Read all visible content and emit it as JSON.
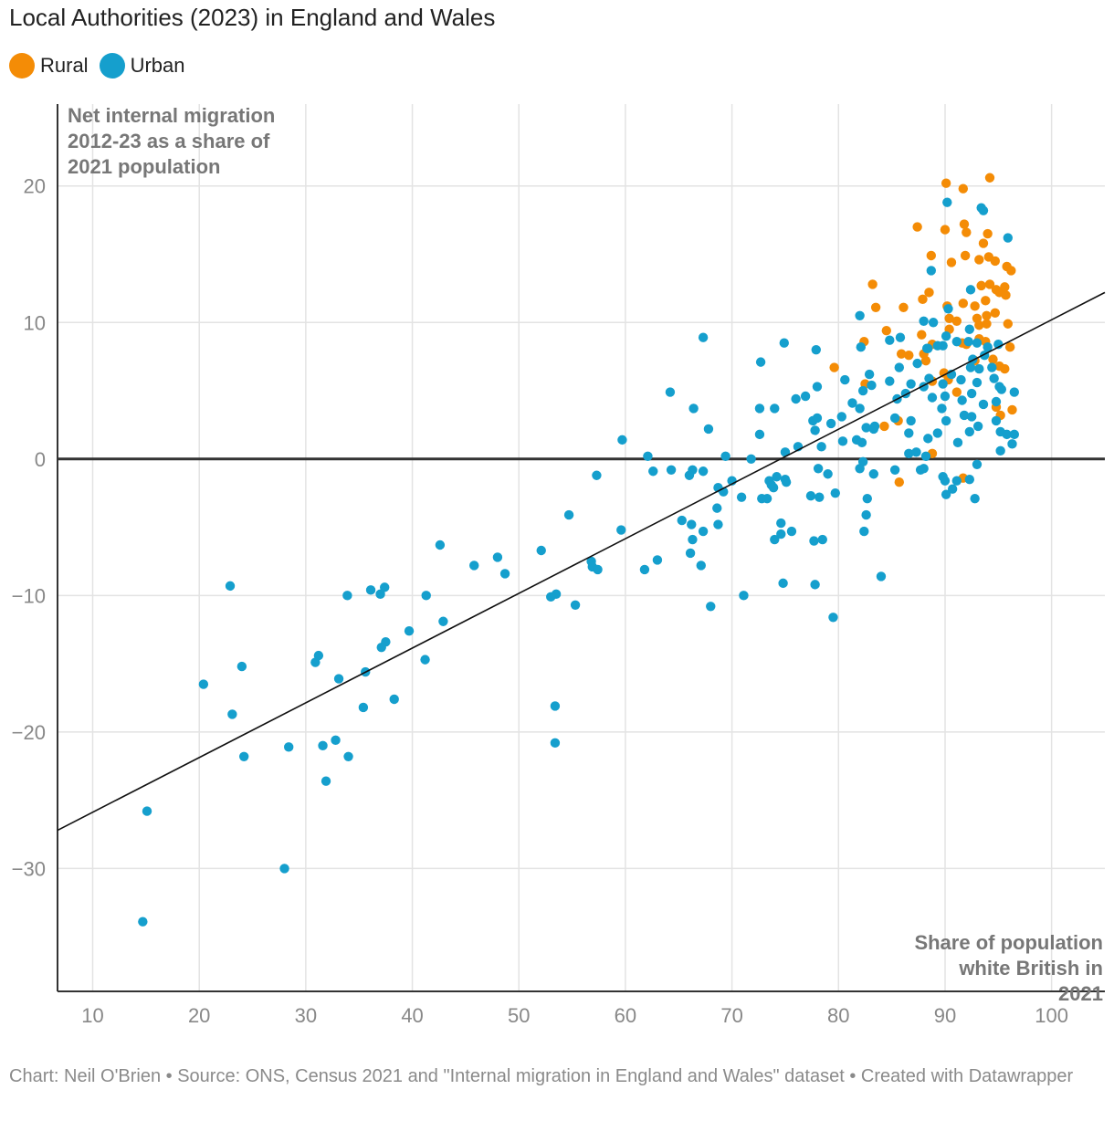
{
  "header": {
    "title": "Local Authorities (2023) in England and Wales"
  },
  "legend": {
    "rural_label": "Rural",
    "urban_label": "Urban"
  },
  "colors": {
    "rural": "#f48c06",
    "urban": "#159fcd",
    "grid": "#e3e3e3",
    "axis": "#333333",
    "label": "#777777",
    "tick": "#888888"
  },
  "footer": {
    "credit": "Chart: Neil O'Brien • Source: ONS, Census 2021 and \"Internal migration in England and Wales\" dataset  • Created with Datawrapper"
  },
  "chart_data": {
    "type": "scatter",
    "title": "Local Authorities (2023) in England and Wales",
    "xlabel": "Share of population white British in 2021",
    "ylabel": "Net internal migration 2012-23 as a share of 2021 population",
    "xlim": [
      6.7,
      105
    ],
    "ylim": [
      -39,
      26
    ],
    "xticks": [
      "10",
      "20",
      "30",
      "40",
      "50",
      "60",
      "70",
      "80",
      "90",
      "100"
    ],
    "yticks": [
      "20",
      "10",
      "0",
      "−10",
      "−20",
      "−30"
    ],
    "trendline": {
      "x": [
        6.7,
        105
      ],
      "y": [
        -27.2,
        12.2
      ]
    },
    "legend_position": "top-left",
    "series": [
      {
        "name": "Rural",
        "points": [
          [
            90.1,
            20.2
          ],
          [
            91.7,
            19.8
          ],
          [
            94.2,
            20.6
          ],
          [
            87.4,
            17.0
          ],
          [
            90.0,
            16.8
          ],
          [
            91.8,
            17.2
          ],
          [
            92.0,
            16.6
          ],
          [
            94.0,
            16.5
          ],
          [
            88.7,
            14.9
          ],
          [
            90.6,
            14.4
          ],
          [
            91.9,
            14.9
          ],
          [
            93.2,
            14.6
          ],
          [
            93.6,
            15.8
          ],
          [
            94.1,
            14.8
          ],
          [
            94.7,
            14.5
          ],
          [
            95.8,
            14.1
          ],
          [
            96.2,
            13.8
          ],
          [
            83.2,
            12.8
          ],
          [
            87.9,
            11.7
          ],
          [
            88.5,
            12.2
          ],
          [
            90.2,
            11.2
          ],
          [
            91.7,
            11.4
          ],
          [
            92.8,
            11.2
          ],
          [
            93.4,
            12.7
          ],
          [
            94.2,
            12.8
          ],
          [
            94.8,
            12.4
          ],
          [
            95.1,
            12.2
          ],
          [
            95.6,
            12.6
          ],
          [
            95.7,
            12.0
          ],
          [
            93.8,
            11.6
          ],
          [
            83.5,
            11.1
          ],
          [
            86.1,
            11.1
          ],
          [
            93.0,
            10.3
          ],
          [
            93.9,
            10.5
          ],
          [
            94.7,
            10.7
          ],
          [
            90.4,
            10.3
          ],
          [
            91.1,
            10.1
          ],
          [
            93.2,
            9.8
          ],
          [
            93.9,
            9.9
          ],
          [
            95.9,
            9.9
          ],
          [
            84.5,
            9.4
          ],
          [
            87.8,
            9.1
          ],
          [
            90.4,
            9.5
          ],
          [
            82.4,
            8.6
          ],
          [
            88.8,
            8.4
          ],
          [
            91.6,
            8.5
          ],
          [
            93.2,
            8.8
          ],
          [
            93.8,
            8.6
          ],
          [
            85.9,
            7.7
          ],
          [
            86.6,
            7.6
          ],
          [
            88.0,
            7.7
          ],
          [
            88.2,
            7.2
          ],
          [
            92.0,
            8.4
          ],
          [
            92.8,
            7.2
          ],
          [
            94.5,
            7.3
          ],
          [
            96.1,
            8.2
          ],
          [
            79.6,
            6.7
          ],
          [
            95.1,
            6.8
          ],
          [
            95.6,
            6.6
          ],
          [
            88.8,
            5.7
          ],
          [
            89.9,
            6.3
          ],
          [
            90.3,
            5.8
          ],
          [
            91.1,
            4.9
          ],
          [
            82.5,
            5.5
          ],
          [
            94.8,
            3.8
          ],
          [
            95.2,
            3.2
          ],
          [
            96.3,
            3.6
          ],
          [
            85.6,
            2.8
          ],
          [
            84.3,
            2.4
          ],
          [
            88.8,
            0.4
          ],
          [
            85.7,
            -1.7
          ],
          [
            91.7,
            -1.4
          ]
        ]
      },
      {
        "name": "Urban",
        "points": [
          [
            90.2,
            18.8
          ],
          [
            93.4,
            18.4
          ],
          [
            93.6,
            18.2
          ],
          [
            95.9,
            16.2
          ],
          [
            88.7,
            13.8
          ],
          [
            92.4,
            12.4
          ],
          [
            82.0,
            10.5
          ],
          [
            90.3,
            11.0
          ],
          [
            88.0,
            10.1
          ],
          [
            88.9,
            10.0
          ],
          [
            92.3,
            9.5
          ],
          [
            84.8,
            8.7
          ],
          [
            85.8,
            8.9
          ],
          [
            88.3,
            8.1
          ],
          [
            89.8,
            8.3
          ],
          [
            90.1,
            9.0
          ],
          [
            91.1,
            8.6
          ],
          [
            92.2,
            8.6
          ],
          [
            93.0,
            8.5
          ],
          [
            94.0,
            8.2
          ],
          [
            95.0,
            8.4
          ],
          [
            82.1,
            8.2
          ],
          [
            67.3,
            8.9
          ],
          [
            74.9,
            8.5
          ],
          [
            77.9,
            8.0
          ],
          [
            72.7,
            7.1
          ],
          [
            88.4,
            8.1
          ],
          [
            89.3,
            8.3
          ],
          [
            92.6,
            7.3
          ],
          [
            93.7,
            7.6
          ],
          [
            85.7,
            6.7
          ],
          [
            87.4,
            7.0
          ],
          [
            88.5,
            5.9
          ],
          [
            89.8,
            5.5
          ],
          [
            90.6,
            6.2
          ],
          [
            91.5,
            5.8
          ],
          [
            93.2,
            6.6
          ],
          [
            94.4,
            6.7
          ],
          [
            94.6,
            5.9
          ],
          [
            95.1,
            5.3
          ],
          [
            96.5,
            4.9
          ],
          [
            80.6,
            5.8
          ],
          [
            82.9,
            6.2
          ],
          [
            84.8,
            5.7
          ],
          [
            86.8,
            5.5
          ],
          [
            88.0,
            5.3
          ],
          [
            92.4,
            6.7
          ],
          [
            93.0,
            5.6
          ],
          [
            78.0,
            5.3
          ],
          [
            82.3,
            5.0
          ],
          [
            83.1,
            5.4
          ],
          [
            81.3,
            4.1
          ],
          [
            82.0,
            3.7
          ],
          [
            85.5,
            4.4
          ],
          [
            86.3,
            4.8
          ],
          [
            88.8,
            4.5
          ],
          [
            90.0,
            4.6
          ],
          [
            91.6,
            4.3
          ],
          [
            92.5,
            4.8
          ],
          [
            94.8,
            4.2
          ],
          [
            95.3,
            5.1
          ],
          [
            64.2,
            4.9
          ],
          [
            66.4,
            3.7
          ],
          [
            72.6,
            3.7
          ],
          [
            74.0,
            3.7
          ],
          [
            76.0,
            4.4
          ],
          [
            76.9,
            4.6
          ],
          [
            77.6,
            2.8
          ],
          [
            78.0,
            3.0
          ],
          [
            79.3,
            2.6
          ],
          [
            80.3,
            3.1
          ],
          [
            82.6,
            2.3
          ],
          [
            83.4,
            2.4
          ],
          [
            85.3,
            3.0
          ],
          [
            86.8,
            2.8
          ],
          [
            89.7,
            3.7
          ],
          [
            90.1,
            2.8
          ],
          [
            91.8,
            3.2
          ],
          [
            92.5,
            3.1
          ],
          [
            93.1,
            2.4
          ],
          [
            93.6,
            4.0
          ],
          [
            67.8,
            2.2
          ],
          [
            72.6,
            1.8
          ],
          [
            59.7,
            1.4
          ],
          [
            77.8,
            2.1
          ],
          [
            80.4,
            1.3
          ],
          [
            81.7,
            1.4
          ],
          [
            82.2,
            1.2
          ],
          [
            83.3,
            2.2
          ],
          [
            86.6,
            1.9
          ],
          [
            88.4,
            1.5
          ],
          [
            89.3,
            1.9
          ],
          [
            91.2,
            1.2
          ],
          [
            92.3,
            2.0
          ],
          [
            94.8,
            2.8
          ],
          [
            95.2,
            2.0
          ],
          [
            95.8,
            1.8
          ],
          [
            96.5,
            1.8
          ],
          [
            96.3,
            1.1
          ],
          [
            95.2,
            0.6
          ],
          [
            78.4,
            0.9
          ],
          [
            75.0,
            0.5
          ],
          [
            76.2,
            0.9
          ],
          [
            86.6,
            0.4
          ],
          [
            87.3,
            0.5
          ],
          [
            88.2,
            0.2
          ],
          [
            62.1,
            0.2
          ],
          [
            69.4,
            0.2
          ],
          [
            71.8,
            0.0
          ],
          [
            82.3,
            -0.2
          ],
          [
            93.0,
            -0.4
          ],
          [
            66.3,
            -0.8
          ],
          [
            62.6,
            -0.9
          ],
          [
            64.3,
            -0.8
          ],
          [
            66.0,
            -1.2
          ],
          [
            67.3,
            -0.9
          ],
          [
            57.3,
            -1.2
          ],
          [
            70.0,
            -1.6
          ],
          [
            73.5,
            -1.6
          ],
          [
            74.2,
            -1.3
          ],
          [
            75.0,
            -1.5
          ],
          [
            78.1,
            -0.7
          ],
          [
            79.0,
            -1.1
          ],
          [
            82.0,
            -0.7
          ],
          [
            83.3,
            -1.1
          ],
          [
            85.3,
            -0.8
          ],
          [
            87.7,
            -0.8
          ],
          [
            88.0,
            -0.7
          ],
          [
            89.8,
            -1.3
          ],
          [
            90.0,
            -1.6
          ],
          [
            91.1,
            -1.6
          ],
          [
            92.3,
            -1.5
          ],
          [
            68.7,
            -2.1
          ],
          [
            69.2,
            -2.4
          ],
          [
            73.7,
            -1.9
          ],
          [
            73.9,
            -2.1
          ],
          [
            75.1,
            -1.7
          ],
          [
            72.8,
            -2.9
          ],
          [
            73.3,
            -2.9
          ],
          [
            70.9,
            -2.8
          ],
          [
            77.4,
            -2.7
          ],
          [
            78.2,
            -2.8
          ],
          [
            79.7,
            -2.5
          ],
          [
            82.7,
            -2.9
          ],
          [
            90.1,
            -2.6
          ],
          [
            90.7,
            -2.2
          ],
          [
            92.8,
            -2.9
          ],
          [
            68.6,
            -3.6
          ],
          [
            54.7,
            -4.1
          ],
          [
            65.3,
            -4.5
          ],
          [
            66.2,
            -4.8
          ],
          [
            68.7,
            -4.8
          ],
          [
            74.6,
            -4.7
          ],
          [
            82.6,
            -4.1
          ],
          [
            67.3,
            -5.3
          ],
          [
            74.6,
            -5.5
          ],
          [
            75.6,
            -5.3
          ],
          [
            59.6,
            -5.2
          ],
          [
            82.4,
            -5.3
          ],
          [
            66.3,
            -5.9
          ],
          [
            74.0,
            -5.9
          ],
          [
            77.7,
            -6.0
          ],
          [
            78.5,
            -5.9
          ],
          [
            42.6,
            -6.3
          ],
          [
            52.1,
            -6.7
          ],
          [
            66.1,
            -6.9
          ],
          [
            48.0,
            -7.2
          ],
          [
            56.8,
            -7.5
          ],
          [
            63.0,
            -7.4
          ],
          [
            45.8,
            -7.8
          ],
          [
            67.1,
            -7.8
          ],
          [
            56.9,
            -7.9
          ],
          [
            57.4,
            -8.1
          ],
          [
            61.8,
            -8.1
          ],
          [
            48.7,
            -8.4
          ],
          [
            84.0,
            -8.6
          ],
          [
            74.8,
            -9.1
          ],
          [
            77.8,
            -9.2
          ],
          [
            22.9,
            -9.3
          ],
          [
            37.4,
            -9.4
          ],
          [
            36.1,
            -9.6
          ],
          [
            37.0,
            -9.9
          ],
          [
            33.9,
            -10.0
          ],
          [
            41.3,
            -10.0
          ],
          [
            53.5,
            -9.9
          ],
          [
            53.0,
            -10.1
          ],
          [
            71.1,
            -10.0
          ],
          [
            55.3,
            -10.7
          ],
          [
            68.0,
            -10.8
          ],
          [
            79.5,
            -11.6
          ],
          [
            42.9,
            -11.9
          ],
          [
            39.7,
            -12.6
          ],
          [
            37.5,
            -13.4
          ],
          [
            37.1,
            -13.8
          ],
          [
            31.2,
            -14.4
          ],
          [
            30.9,
            -14.9
          ],
          [
            41.2,
            -14.7
          ],
          [
            24.0,
            -15.2
          ],
          [
            35.6,
            -15.6
          ],
          [
            33.1,
            -16.1
          ],
          [
            20.4,
            -16.5
          ],
          [
            38.3,
            -17.6
          ],
          [
            35.4,
            -18.2
          ],
          [
            53.4,
            -18.1
          ],
          [
            23.1,
            -18.7
          ],
          [
            32.8,
            -20.6
          ],
          [
            31.6,
            -21.0
          ],
          [
            28.4,
            -21.1
          ],
          [
            53.4,
            -20.8
          ],
          [
            24.2,
            -21.8
          ],
          [
            34.0,
            -21.8
          ],
          [
            31.9,
            -23.6
          ],
          [
            15.1,
            -25.8
          ],
          [
            28.0,
            -30.0
          ],
          [
            14.7,
            -33.9
          ]
        ]
      }
    ]
  }
}
